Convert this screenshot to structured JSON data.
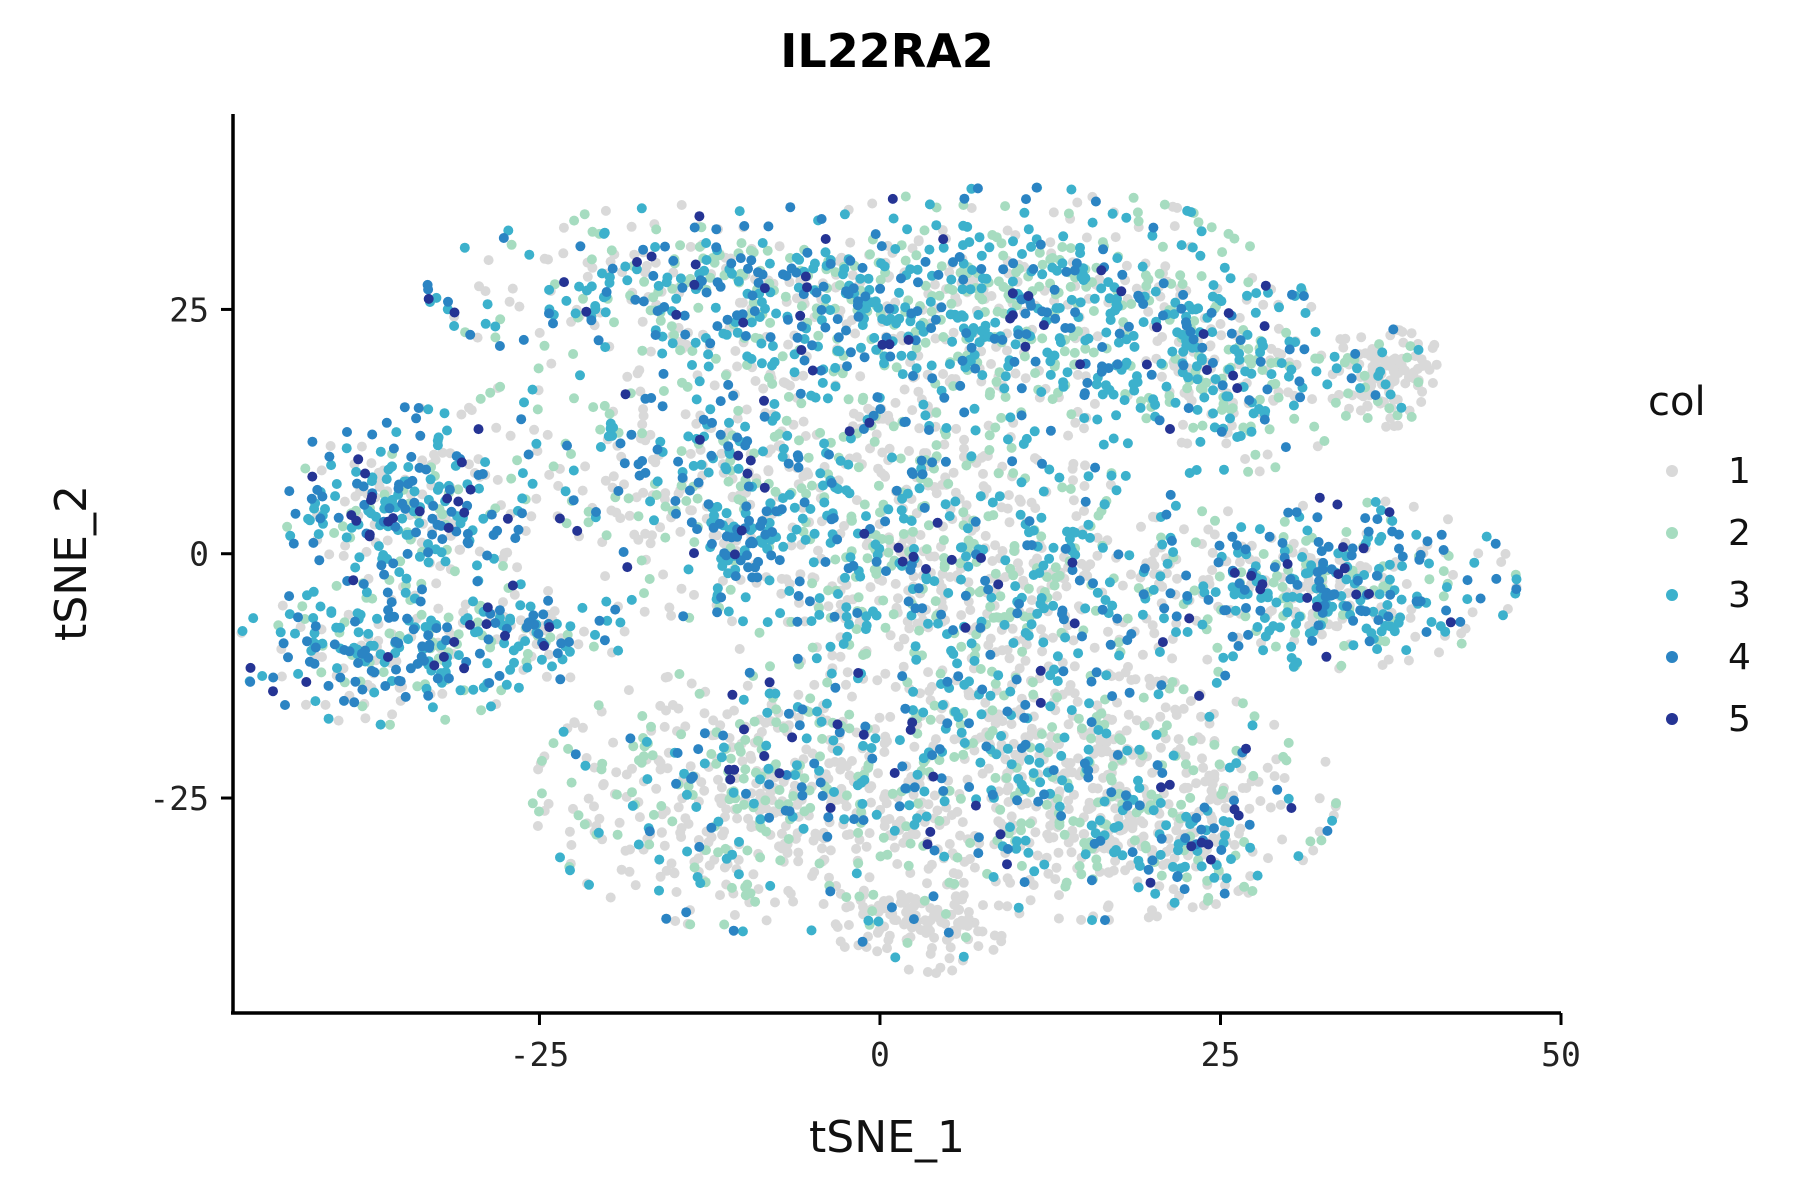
{
  "chart_data": {
    "type": "scatter",
    "title": "IL22RA2",
    "xlabel": "tSNE_1",
    "ylabel": "tSNE_2",
    "xlim": [
      -47.5,
      50
    ],
    "ylim": [
      -47,
      45
    ],
    "xticks": [
      -25,
      0,
      25,
      50
    ],
    "yticks": [
      -25,
      0,
      25
    ],
    "grid": false,
    "legend": {
      "title": "col",
      "placement": "right",
      "entries": [
        {
          "label": "1",
          "color": "#d9d9d9"
        },
        {
          "label": "2",
          "color": "#a6dcc0"
        },
        {
          "label": "3",
          "color": "#3cb1cc"
        },
        {
          "label": "4",
          "color": "#2b84c3"
        },
        {
          "label": "5",
          "color": "#253494"
        }
      ]
    },
    "cluster_regions": [
      {
        "cx": -35,
        "cy": 5,
        "rx": 7,
        "ry": 8,
        "n": 260,
        "mix": [
          0.25,
          0.12,
          0.33,
          0.24,
          0.06
        ]
      },
      {
        "cx": -36,
        "cy": -10,
        "rx": 9,
        "ry": 6,
        "n": 260,
        "mix": [
          0.22,
          0.14,
          0.33,
          0.25,
          0.06
        ]
      },
      {
        "cx": -25,
        "cy": -8,
        "rx": 5,
        "ry": 4,
        "n": 90,
        "mix": [
          0.25,
          0.12,
          0.33,
          0.24,
          0.06
        ]
      },
      {
        "cx": -12,
        "cy": 27,
        "rx": 17,
        "ry": 7,
        "n": 420,
        "mix": [
          0.28,
          0.2,
          0.27,
          0.2,
          0.05
        ]
      },
      {
        "cx": 10,
        "cy": 25,
        "rx": 17,
        "ry": 10,
        "n": 650,
        "mix": [
          0.25,
          0.28,
          0.32,
          0.12,
          0.03
        ]
      },
      {
        "cx": 25,
        "cy": 18,
        "rx": 8,
        "ry": 8,
        "n": 260,
        "mix": [
          0.3,
          0.26,
          0.3,
          0.11,
          0.03
        ]
      },
      {
        "cx": 37,
        "cy": 18,
        "rx": 4,
        "ry": 4,
        "n": 130,
        "mix": [
          0.82,
          0.06,
          0.07,
          0.04,
          0.01
        ]
      },
      {
        "cx": -8,
        "cy": 8,
        "rx": 20,
        "ry": 12,
        "n": 700,
        "mix": [
          0.42,
          0.22,
          0.2,
          0.13,
          0.03
        ]
      },
      {
        "cx": 8,
        "cy": -5,
        "rx": 16,
        "ry": 12,
        "n": 720,
        "mix": [
          0.45,
          0.22,
          0.2,
          0.1,
          0.03
        ]
      },
      {
        "cx": 33,
        "cy": -3,
        "rx": 11,
        "ry": 7,
        "n": 420,
        "mix": [
          0.3,
          0.15,
          0.3,
          0.2,
          0.05
        ]
      },
      {
        "cx": -8,
        "cy": -25,
        "rx": 14,
        "ry": 11,
        "n": 650,
        "mix": [
          0.6,
          0.2,
          0.12,
          0.06,
          0.02
        ]
      },
      {
        "cx": 16,
        "cy": -25,
        "rx": 14,
        "ry": 10,
        "n": 650,
        "mix": [
          0.6,
          0.18,
          0.13,
          0.07,
          0.02
        ]
      },
      {
        "cx": 3,
        "cy": -38,
        "rx": 5,
        "ry": 4,
        "n": 120,
        "mix": [
          0.88,
          0.06,
          0.04,
          0.02,
          0.0
        ]
      },
      {
        "cx": -10,
        "cy": 1,
        "rx": 3,
        "ry": 3,
        "n": 60,
        "mix": [
          0.15,
          0.1,
          0.3,
          0.4,
          0.05
        ]
      },
      {
        "cx": 22,
        "cy": -30,
        "rx": 5,
        "ry": 5,
        "n": 90,
        "mix": [
          0.3,
          0.15,
          0.3,
          0.2,
          0.05
        ]
      }
    ]
  }
}
